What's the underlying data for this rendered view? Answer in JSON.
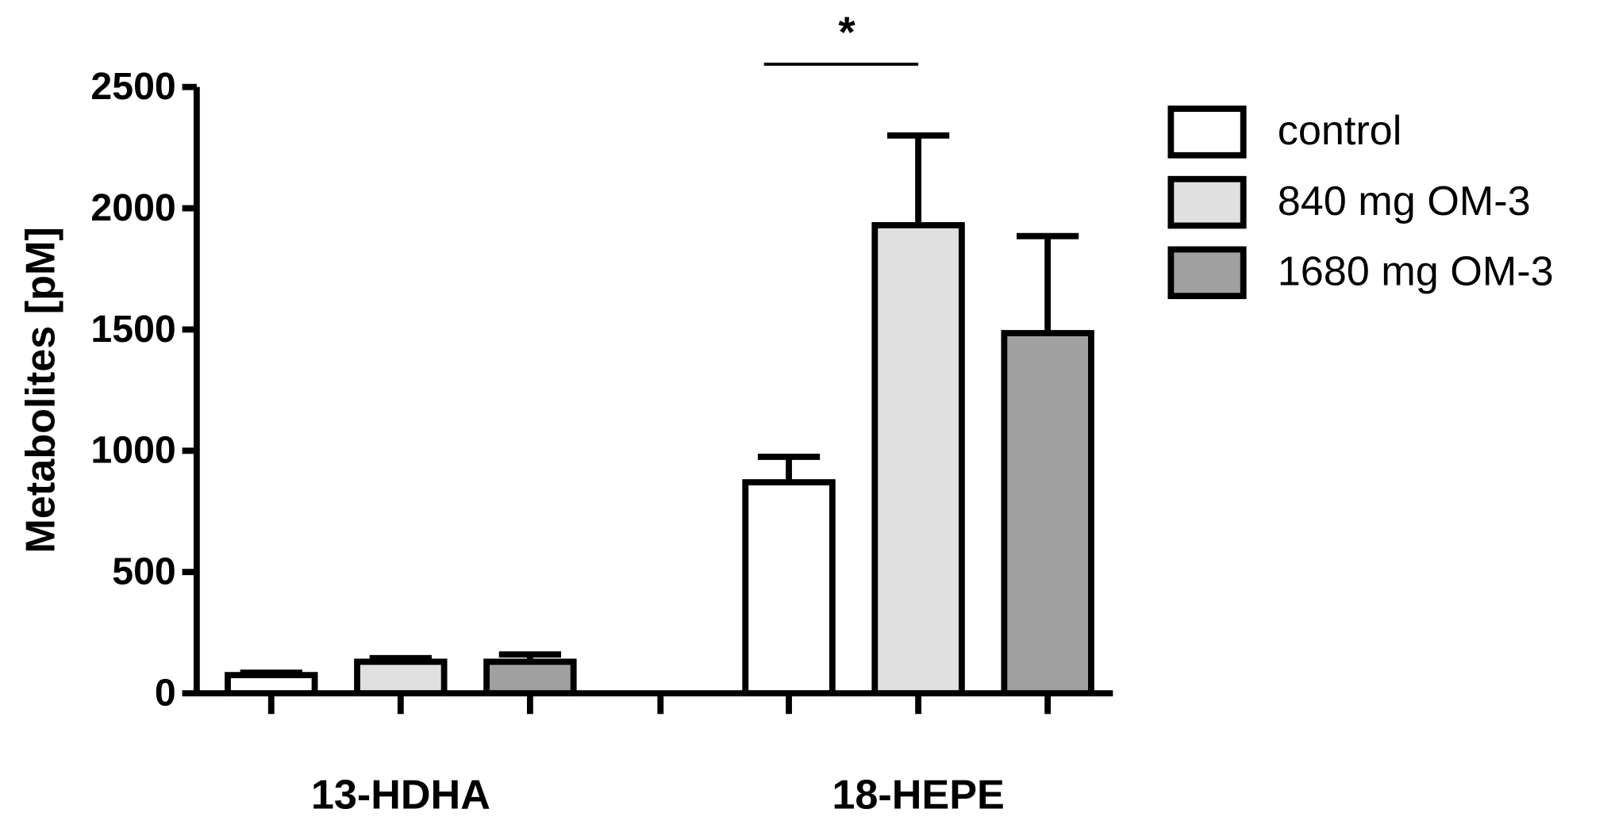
{
  "chart_data": {
    "type": "bar",
    "y_label": "Metabolites [pM]",
    "categories": [
      "13-HDHA",
      "18-HEPE"
    ],
    "series": [
      {
        "name": "control",
        "color": "#ffffff",
        "values": [
          75,
          870
        ],
        "errors": [
          10,
          105
        ]
      },
      {
        "name": "840 mg OM-3",
        "color": "#e0e0e0",
        "values": [
          130,
          1930
        ],
        "errors": [
          15,
          370
        ]
      },
      {
        "name": "1680 mg OM-3",
        "color": "#a0a0a0",
        "values": [
          130,
          1485
        ],
        "errors": [
          30,
          400
        ]
      }
    ],
    "ylim": [
      0,
      2500
    ],
    "yticks": [
      0,
      500,
      1000,
      1500,
      2000,
      2500
    ],
    "annotation": "*",
    "grid": false,
    "legend": "right"
  }
}
